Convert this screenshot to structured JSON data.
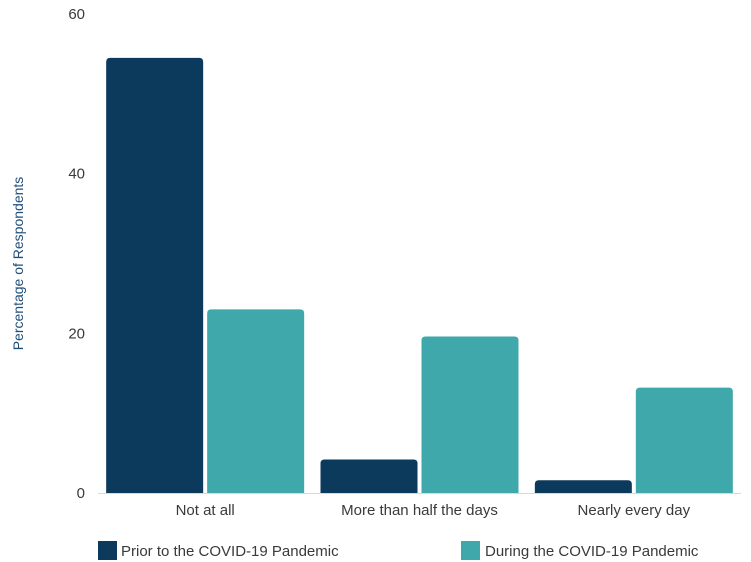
{
  "chart_data": {
    "type": "bar",
    "title": "",
    "xlabel": "",
    "ylabel": "Percentage of Respondents",
    "ylim": [
      0,
      60
    ],
    "yticks": [
      0,
      20,
      40,
      60
    ],
    "grid": false,
    "legend_position": "bottom",
    "categories": [
      "Not at all",
      "More than half the days",
      "Nearly every day"
    ],
    "series": [
      {
        "name": "Prior to the COVID-19 Pandemic",
        "color": "#0b3a5c",
        "values": [
          54.5,
          4.2,
          1.6
        ]
      },
      {
        "name": "During the COVID-19 Pandemic",
        "color": "#3ea8aa",
        "values": [
          23.0,
          19.6,
          13.2
        ]
      }
    ]
  }
}
